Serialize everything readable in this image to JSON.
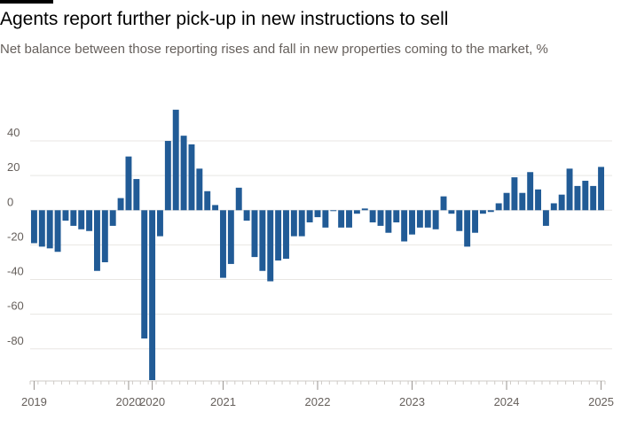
{
  "header": {
    "title": "Agents report further pick-up in new instructions to sell",
    "subtitle": "Net balance between those reporting rises and fall in new properties coming to the market, %"
  },
  "colors": {
    "bar": "#215b96",
    "grid": "#e8e6e3",
    "text": "#66605c",
    "baseline": "#cfcbc7"
  },
  "chart_data": {
    "type": "bar",
    "title": "Agents report further pick-up in new instructions to sell",
    "subtitle": "Net balance between those reporting rises and fall in new properties coming to the market, %",
    "xlabel": "",
    "ylabel": "",
    "ylim": [
      -98,
      62
    ],
    "y_ticks": [
      40,
      20,
      0,
      -20,
      -40,
      -60,
      -80
    ],
    "x_tick_labels": [
      "2019",
      "2020",
      "2020",
      "2021",
      "2022",
      "2023",
      "2024",
      "2025"
    ],
    "grid": true,
    "series": [
      {
        "values": [
          -19,
          -21,
          -22,
          -24,
          -6,
          -9,
          -11,
          -12,
          -35,
          -30,
          -9,
          7,
          31,
          18,
          -74,
          -98,
          -15,
          40,
          58,
          43,
          38,
          24,
          11,
          3,
          -39,
          -31,
          13,
          -6,
          -27,
          -35,
          -41,
          -29,
          -28,
          -15,
          -15,
          -7,
          -4,
          -10,
          0,
          -10,
          -10,
          -2,
          1,
          -7,
          -9,
          -13,
          -7,
          -18,
          -14,
          -10,
          -10,
          -11,
          8,
          -2,
          -12,
          -21,
          -13,
          -2,
          -1,
          4,
          10,
          19,
          10,
          22,
          12,
          -9,
          4,
          9,
          24,
          14,
          17,
          14,
          25
        ]
      }
    ]
  }
}
